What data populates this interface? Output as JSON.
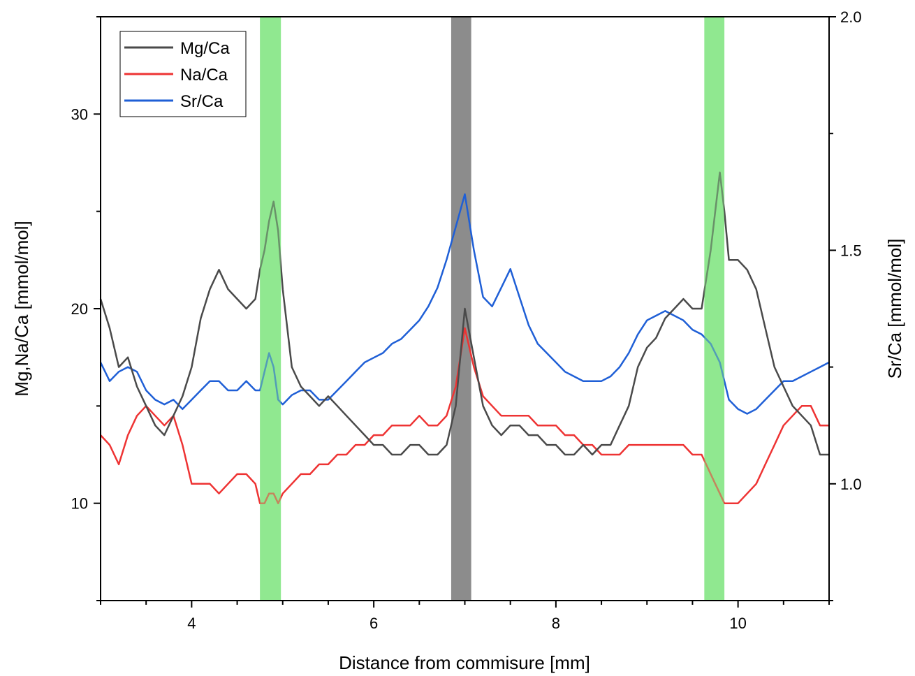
{
  "chart_data": {
    "type": "line",
    "xlabel": "Distance from commisure [mm]",
    "ylabel_left": "Mg,Na/Ca [mmol/mol]",
    "ylabel_right": "Sr/Ca [mmol/mol]",
    "xlim": [
      3.0,
      11.0
    ],
    "ylim_left": [
      5,
      35
    ],
    "ylim_right": [
      0.75,
      2.0
    ],
    "x_ticks": [
      4,
      6,
      8,
      10
    ],
    "x_tick_labels": [
      "4",
      "6",
      "8",
      "10"
    ],
    "y_left_ticks": [
      10,
      20,
      30
    ],
    "y_left_tick_labels": [
      "10",
      "20",
      "30"
    ],
    "y_right_ticks": [
      1.0,
      1.5,
      2.0
    ],
    "y_right_tick_labels": [
      "1.0",
      "1.5",
      "2.0"
    ],
    "grid": false,
    "legend_position": "top-left",
    "bands": [
      {
        "x0": 4.75,
        "x1": 4.98,
        "color": "#90e890"
      },
      {
        "x0": 6.85,
        "x1": 7.07,
        "color": "#8c8c8c"
      },
      {
        "x0": 9.63,
        "x1": 9.85,
        "color": "#90e890"
      }
    ],
    "series": [
      {
        "name": "Mg/Ca",
        "color": "#4a4a4a",
        "axis": "left",
        "x": [
          3.0,
          3.1,
          3.2,
          3.3,
          3.4,
          3.5,
          3.6,
          3.7,
          3.8,
          3.9,
          4.0,
          4.1,
          4.2,
          4.3,
          4.4,
          4.5,
          4.6,
          4.7,
          4.75,
          4.8,
          4.85,
          4.9,
          4.95,
          5.0,
          5.1,
          5.2,
          5.3,
          5.4,
          5.5,
          5.6,
          5.7,
          5.8,
          5.9,
          6.0,
          6.1,
          6.2,
          6.3,
          6.4,
          6.5,
          6.6,
          6.7,
          6.8,
          6.9,
          7.0,
          7.1,
          7.2,
          7.3,
          7.4,
          7.5,
          7.6,
          7.7,
          7.8,
          7.9,
          8.0,
          8.1,
          8.2,
          8.3,
          8.4,
          8.5,
          8.6,
          8.7,
          8.8,
          8.9,
          9.0,
          9.1,
          9.2,
          9.3,
          9.4,
          9.5,
          9.6,
          9.7,
          9.75,
          9.8,
          9.85,
          9.9,
          10.0,
          10.1,
          10.2,
          10.3,
          10.4,
          10.5,
          10.6,
          10.7,
          10.8,
          10.9,
          11.0
        ],
        "values": [
          20.5,
          19.0,
          17.0,
          17.5,
          16.0,
          15.0,
          14.0,
          13.5,
          14.5,
          15.5,
          17.0,
          19.5,
          21.0,
          22.0,
          21.0,
          20.5,
          20.0,
          20.5,
          22.0,
          23.0,
          24.5,
          25.5,
          24.0,
          21.0,
          17.0,
          16.0,
          15.5,
          15.0,
          15.5,
          15.0,
          14.5,
          14.0,
          13.5,
          13.0,
          13.0,
          12.5,
          12.5,
          13.0,
          13.0,
          12.5,
          12.5,
          13.0,
          15.0,
          20.0,
          17.5,
          15.0,
          14.0,
          13.5,
          14.0,
          14.0,
          13.5,
          13.5,
          13.0,
          13.0,
          12.5,
          12.5,
          13.0,
          12.5,
          13.0,
          13.0,
          14.0,
          15.0,
          17.0,
          18.0,
          18.5,
          19.5,
          20.0,
          20.5,
          20.0,
          20.0,
          23.0,
          25.0,
          27.0,
          25.0,
          22.5,
          22.5,
          22.0,
          21.0,
          19.0,
          17.0,
          16.0,
          15.0,
          14.5,
          14.0,
          12.5,
          12.5
        ]
      },
      {
        "name": "Na/Ca",
        "color": "#ee3333",
        "axis": "left",
        "x": [
          3.0,
          3.1,
          3.2,
          3.3,
          3.4,
          3.5,
          3.6,
          3.7,
          3.8,
          3.9,
          4.0,
          4.1,
          4.2,
          4.3,
          4.4,
          4.5,
          4.6,
          4.7,
          4.75,
          4.8,
          4.85,
          4.9,
          4.95,
          5.0,
          5.1,
          5.2,
          5.3,
          5.4,
          5.5,
          5.6,
          5.7,
          5.8,
          5.9,
          6.0,
          6.1,
          6.2,
          6.3,
          6.4,
          6.5,
          6.6,
          6.7,
          6.8,
          6.9,
          7.0,
          7.1,
          7.2,
          7.3,
          7.4,
          7.5,
          7.6,
          7.7,
          7.8,
          7.9,
          8.0,
          8.1,
          8.2,
          8.3,
          8.4,
          8.5,
          8.6,
          8.7,
          8.8,
          8.9,
          9.0,
          9.1,
          9.2,
          9.3,
          9.4,
          9.5,
          9.6,
          9.7,
          9.75,
          9.8,
          9.85,
          9.9,
          10.0,
          10.1,
          10.2,
          10.3,
          10.4,
          10.5,
          10.6,
          10.7,
          10.8,
          10.9,
          11.0
        ],
        "values": [
          13.5,
          13.0,
          12.0,
          13.5,
          14.5,
          15.0,
          14.5,
          14.0,
          14.5,
          13.0,
          11.0,
          11.0,
          11.0,
          10.5,
          11.0,
          11.5,
          11.5,
          11.0,
          10.0,
          10.0,
          10.5,
          10.5,
          10.0,
          10.5,
          11.0,
          11.5,
          11.5,
          12.0,
          12.0,
          12.5,
          12.5,
          13.0,
          13.0,
          13.5,
          13.5,
          14.0,
          14.0,
          14.0,
          14.5,
          14.0,
          14.0,
          14.5,
          16.0,
          19.0,
          17.0,
          15.5,
          15.0,
          14.5,
          14.5,
          14.5,
          14.5,
          14.0,
          14.0,
          14.0,
          13.5,
          13.5,
          13.0,
          13.0,
          12.5,
          12.5,
          12.5,
          13.0,
          13.0,
          13.0,
          13.0,
          13.0,
          13.0,
          13.0,
          12.5,
          12.5,
          11.5,
          11.0,
          10.5,
          10.0,
          10.0,
          10.0,
          10.5,
          11.0,
          12.0,
          13.0,
          14.0,
          14.5,
          15.0,
          15.0,
          14.0,
          14.0
        ]
      },
      {
        "name": "Sr/Ca",
        "color": "#1f5fd6",
        "axis": "right",
        "x": [
          3.0,
          3.1,
          3.2,
          3.3,
          3.4,
          3.5,
          3.6,
          3.7,
          3.8,
          3.9,
          4.0,
          4.1,
          4.2,
          4.3,
          4.4,
          4.5,
          4.6,
          4.7,
          4.75,
          4.8,
          4.85,
          4.9,
          4.95,
          5.0,
          5.1,
          5.2,
          5.3,
          5.4,
          5.5,
          5.6,
          5.7,
          5.8,
          5.9,
          6.0,
          6.1,
          6.2,
          6.3,
          6.4,
          6.5,
          6.6,
          6.7,
          6.8,
          6.9,
          7.0,
          7.1,
          7.2,
          7.3,
          7.4,
          7.5,
          7.6,
          7.7,
          7.8,
          7.9,
          8.0,
          8.1,
          8.2,
          8.3,
          8.4,
          8.5,
          8.6,
          8.7,
          8.8,
          8.9,
          9.0,
          9.1,
          9.2,
          9.3,
          9.4,
          9.5,
          9.6,
          9.7,
          9.75,
          9.8,
          9.85,
          9.9,
          10.0,
          10.1,
          10.2,
          10.3,
          10.4,
          10.5,
          10.6,
          10.7,
          10.8,
          10.9,
          11.0
        ],
        "values": [
          1.26,
          1.22,
          1.24,
          1.25,
          1.24,
          1.2,
          1.18,
          1.17,
          1.18,
          1.16,
          1.18,
          1.2,
          1.22,
          1.22,
          1.2,
          1.2,
          1.22,
          1.2,
          1.2,
          1.24,
          1.28,
          1.25,
          1.18,
          1.17,
          1.19,
          1.2,
          1.2,
          1.18,
          1.18,
          1.2,
          1.22,
          1.24,
          1.26,
          1.27,
          1.28,
          1.3,
          1.31,
          1.33,
          1.35,
          1.38,
          1.42,
          1.48,
          1.55,
          1.62,
          1.5,
          1.4,
          1.38,
          1.42,
          1.46,
          1.4,
          1.34,
          1.3,
          1.28,
          1.26,
          1.24,
          1.23,
          1.22,
          1.22,
          1.22,
          1.23,
          1.25,
          1.28,
          1.32,
          1.35,
          1.36,
          1.37,
          1.36,
          1.35,
          1.33,
          1.32,
          1.3,
          1.28,
          1.26,
          1.22,
          1.18,
          1.16,
          1.15,
          1.16,
          1.18,
          1.2,
          1.22,
          1.22,
          1.23,
          1.24,
          1.25,
          1.26
        ]
      }
    ]
  }
}
